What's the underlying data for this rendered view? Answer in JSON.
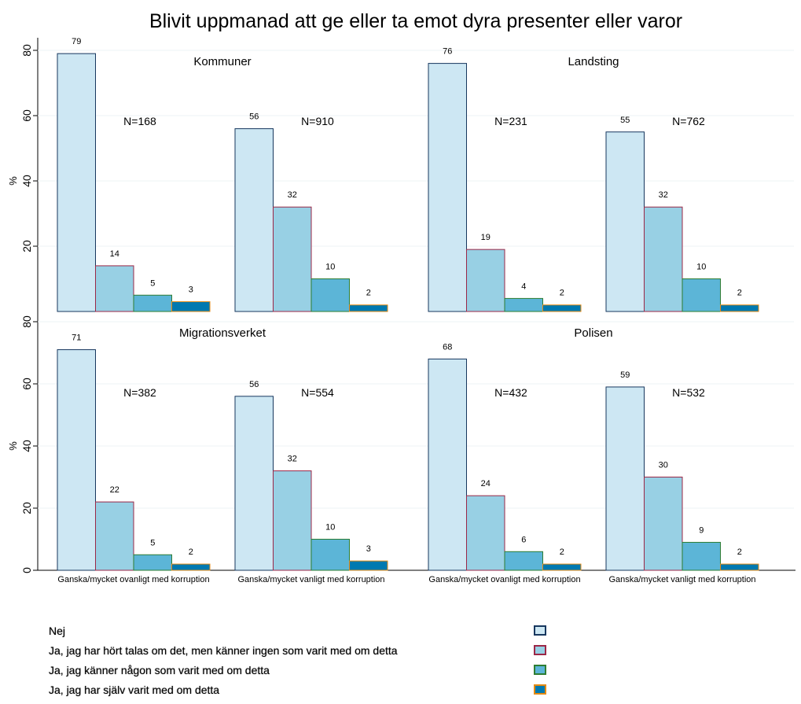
{
  "chart_data": {
    "type": "bar",
    "title": "Blivit uppmanad att ge eller ta emot dyra presenter eller varor",
    "ylabel": "%",
    "ylim": [
      0,
      80
    ],
    "yticks": [
      0,
      20,
      40,
      60,
      80
    ],
    "grid": true,
    "legend_position": "bottom",
    "categories": [
      "Ganska/mycket ovanligt med korruption",
      "Ganska/mycket vanligt med korruption"
    ],
    "series": [
      {
        "name": "Nej",
        "fill": "#cde7f3",
        "stroke": "#17375e"
      },
      {
        "name": "Ja, jag har hört talas om det, men känner ingen som varit med om detta",
        "fill": "#98d0e4",
        "stroke": "#9b2747"
      },
      {
        "name": "Ja, jag känner någon som varit med om detta",
        "fill": "#5cb5d7",
        "stroke": "#2e7d32"
      },
      {
        "name": "Ja, jag har själv varit med om detta",
        "fill": "#0079b0",
        "stroke": "#e38a14"
      }
    ],
    "panels": [
      {
        "title": "Kommuner",
        "groups": [
          {
            "n": "N=168",
            "values": [
              79,
              14,
              5,
              3
            ]
          },
          {
            "n": "N=910",
            "values": [
              56,
              32,
              10,
              2
            ]
          }
        ]
      },
      {
        "title": "Landsting",
        "groups": [
          {
            "n": "N=231",
            "values": [
              76,
              19,
              4,
              2
            ]
          },
          {
            "n": "N=762",
            "values": [
              55,
              32,
              10,
              2
            ]
          }
        ]
      },
      {
        "title": "Migrationsverket",
        "groups": [
          {
            "n": "N=382",
            "values": [
              71,
              22,
              5,
              2
            ]
          },
          {
            "n": "N=554",
            "values": [
              56,
              32,
              10,
              3
            ]
          }
        ]
      },
      {
        "title": "Polisen",
        "groups": [
          {
            "n": "N=432",
            "values": [
              68,
              24,
              6,
              2
            ]
          },
          {
            "n": "N=532",
            "values": [
              59,
              30,
              9,
              2
            ]
          }
        ]
      }
    ]
  }
}
